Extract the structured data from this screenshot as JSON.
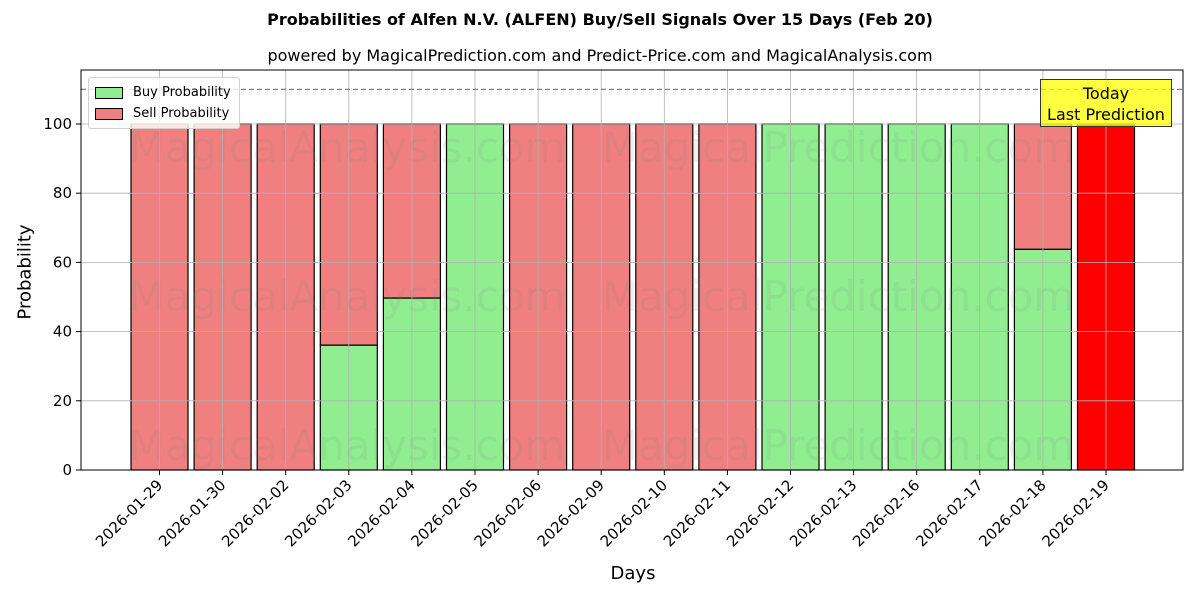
{
  "header": {
    "title": "Probabilities of Alfen N.V. (ALFEN) Buy/Sell Signals Over 15 Days (Feb 20)",
    "subtitle": "powered by MagicalPrediction.com and Predict-Price.com and MagicalAnalysis.com"
  },
  "legend": {
    "buy_label": "Buy Probability",
    "sell_label": "Sell Probability"
  },
  "annotation": {
    "line1": "Today",
    "line2": "Last Prediction"
  },
  "watermarks": [
    "MagicalAnalysis.com",
    "MagicalPrediction.com"
  ],
  "colors": {
    "buy": "#90ee90",
    "sell": "#f08080",
    "today": "#ff0000",
    "annotation_bg": "#ffff00",
    "grid": "#b0b0b0"
  },
  "chart_data": {
    "type": "bar",
    "stacked": true,
    "title": "Probabilities of Alfen N.V. (ALFEN) Buy/Sell Signals Over 15 Days (Feb 20)",
    "subtitle": "powered by MagicalPrediction.com and Predict-Price.com and MagicalAnalysis.com",
    "xlabel": "Days",
    "ylabel": "Probability",
    "ylim": [
      0,
      115.6
    ],
    "yticks": [
      0,
      20,
      40,
      60,
      80,
      100
    ],
    "grid": true,
    "legend_position": "upper left",
    "reference_line": {
      "y": 110,
      "style": "dashed"
    },
    "categories": [
      "2026-01-29",
      "2026-01-30",
      "2026-02-02",
      "2026-02-03",
      "2026-02-04",
      "2026-02-05",
      "2026-02-06",
      "2026-02-09",
      "2026-02-10",
      "2026-02-11",
      "2026-02-12",
      "2026-02-13",
      "2026-02-16",
      "2026-02-17",
      "2026-02-18",
      "2026-02-19"
    ],
    "series": [
      {
        "name": "Buy Probability",
        "values": [
          0,
          0,
          0,
          36.1,
          49.7,
          100,
          0,
          0,
          0,
          0,
          100,
          100,
          100,
          100,
          63.8,
          0
        ]
      },
      {
        "name": "Sell Probability",
        "values": [
          100,
          100,
          100,
          63.9,
          50.3,
          0,
          100,
          100,
          100,
          100,
          0,
          0,
          0,
          0,
          36.2,
          100
        ]
      }
    ],
    "highlight": {
      "category": "2026-02-19",
      "label": "Today Last Prediction",
      "color": "#ff0000"
    }
  }
}
